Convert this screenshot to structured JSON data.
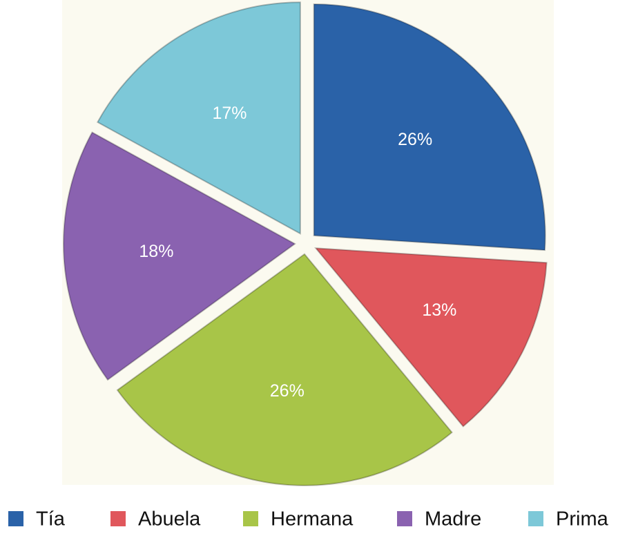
{
  "chart_data": {
    "type": "pie",
    "categories": [
      "Tía",
      "Abuela",
      "Hermana",
      "Madre",
      "Prima"
    ],
    "values": [
      26,
      13,
      26,
      18,
      17
    ],
    "value_labels": [
      "26%",
      "13%",
      "26%",
      "18%",
      "17%"
    ],
    "colors": [
      "#2a62a8",
      "#e0575c",
      "#a8c548",
      "#8a62b0",
      "#7dc8d8"
    ],
    "legend": "bottom"
  }
}
